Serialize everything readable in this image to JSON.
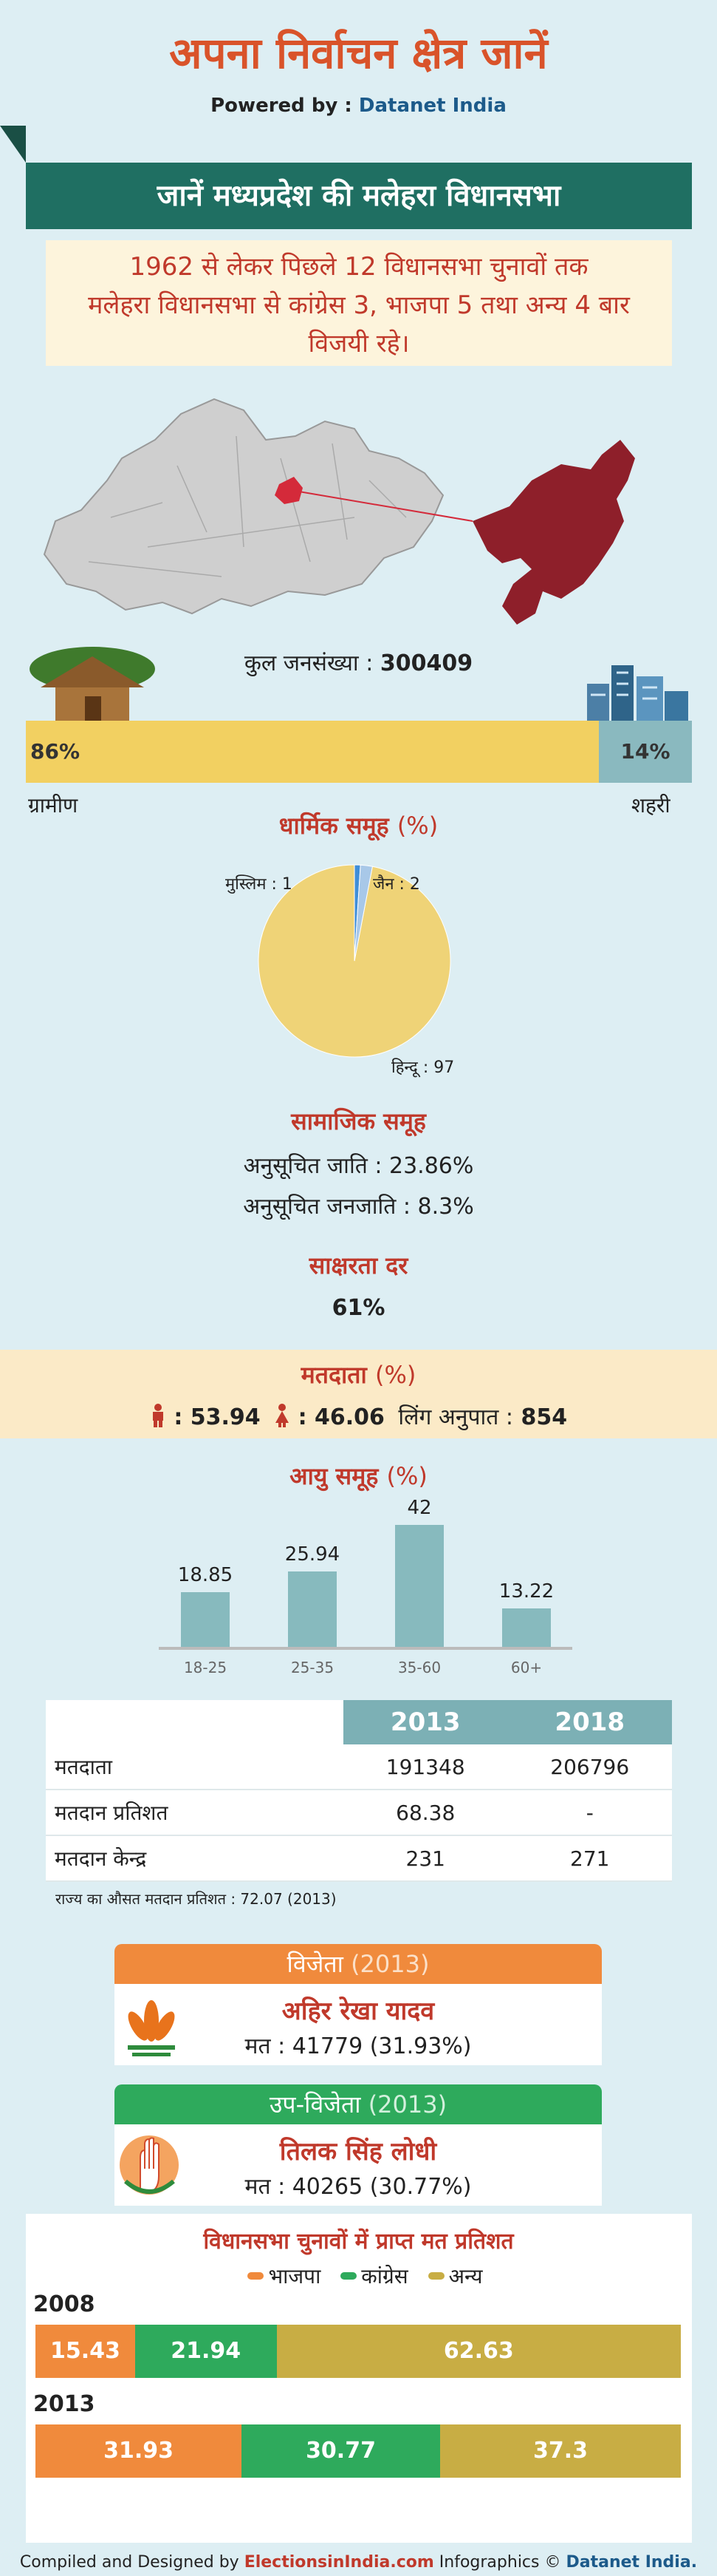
{
  "title": "अपना निर्वाचन क्षेत्र जानें",
  "powered_by": {
    "prefix": "Powered by :",
    "brand": "Datanet India"
  },
  "banner": "जानें मध्यप्रदेश की मलेहरा  विधानसभा",
  "intro": {
    "line1": "1962 से लेकर पिछले 12 विधानसभा चुनावों तक",
    "line2": "मलेहरा विधानसभा से कांग्रेस 3, भाजपा 5 तथा अन्य 4 बार",
    "line3": "विजयी रहे।"
  },
  "population": {
    "label": "कुल जनसंख्या :",
    "value": "300409"
  },
  "rural_urban": {
    "rural_pct": 86,
    "rural_text": "86%",
    "rural_label": "ग्रामीण",
    "urban_pct": 14,
    "urban_text": "14%",
    "urban_label": "शहरी"
  },
  "religion": {
    "title": "धार्मिक समूह",
    "unit": "(%)",
    "muslim": "मुस्लिम : 1",
    "jain": "जैन : 2",
    "hindu": "हिन्दू : 97"
  },
  "social": {
    "title": "सामाजिक समूह",
    "sc": "अनुसूचित जाति :   23.86%",
    "st": "अनुसूचित जनजाति :   8.3%"
  },
  "literacy": {
    "title": "साक्षरता दर",
    "value": "61%"
  },
  "voters": {
    "title": "मतदाता",
    "unit": "(%)",
    "male": ": 53.94",
    "female": ": 46.06",
    "sex_ratio_label": "लिंग अनुपात :",
    "sex_ratio_value": "854"
  },
  "age": {
    "title": "आयु समूह",
    "unit": "(%)"
  },
  "table": {
    "years": [
      "2013",
      "2018"
    ],
    "rows": [
      {
        "label": "मतदाता",
        "v2013": "191348",
        "v2018": "206796"
      },
      {
        "label": "मतदान प्रतिशत",
        "v2013": "68.38",
        "v2018": "-"
      },
      {
        "label": "मतदान केन्द्र",
        "v2013": "231",
        "v2018": "271"
      }
    ],
    "note": "राज्य का औसत मतदान प्रतिशत : 72.07 (2013)"
  },
  "winner": {
    "head": "विजेता",
    "year": "(2013)",
    "name": "अहिर रेखा यादव",
    "votes": "मत : 41779 (31.93%)",
    "color": "#f08a3c"
  },
  "runner_up": {
    "head": "उप-विजेता",
    "year": "(2013)",
    "name": "तिलक सिंह लोधी",
    "votes": "मत : 40265 (30.77%)",
    "color": "#2eaa5c"
  },
  "vote_share": {
    "title": "विधानसभा चुनावों में प्राप्त मत प्रतिशत",
    "legend": [
      "भाजपा",
      "कांग्रेस",
      "अन्य"
    ],
    "colors": {
      "bjp": "#f08a3c",
      "inc": "#2eaa5c",
      "other": "#c8ad44"
    }
  },
  "footer": {
    "prefix": "Compiled and Designed by",
    "site": "ElectionsinIndia.com",
    "middle": "Infographics ©",
    "brand": "Datanet India."
  },
  "chart_data": [
    {
      "type": "bar",
      "title": "आयु समूह",
      "categories": [
        "18-25",
        "25-35",
        "35-60",
        "60+"
      ],
      "values": [
        18.85,
        25.94,
        42,
        13.22
      ],
      "value_labels": [
        "18.85",
        "25.94",
        "42",
        "13.22"
      ]
    },
    {
      "type": "pie",
      "title": "धार्मिक समूह",
      "categories": [
        "हिन्दू",
        "मुस्लिम",
        "जैन"
      ],
      "values": [
        97,
        1,
        2
      ],
      "colors": [
        "#efd377",
        "#3f8ed8",
        "#a8c8e8"
      ]
    },
    {
      "type": "bar",
      "stacked": true,
      "title": "विधानसभा चुनावों में प्राप्त मत प्रतिशत",
      "categories": [
        "2008",
        "2013"
      ],
      "series": [
        {
          "name": "भाजपा",
          "values": [
            15.43,
            31.93
          ],
          "labels": [
            "15.43",
            "31.93"
          ]
        },
        {
          "name": "कांग्रेस",
          "values": [
            21.94,
            30.77
          ],
          "labels": [
            "21.94",
            "30.77"
          ]
        },
        {
          "name": "अन्य",
          "values": [
            62.63,
            37.3
          ],
          "labels": [
            "62.63",
            "37.3"
          ]
        }
      ]
    }
  ]
}
